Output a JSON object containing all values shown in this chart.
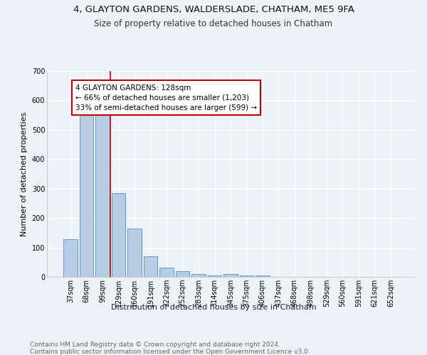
{
  "title1": "4, GLAYTON GARDENS, WALDERSLADE, CHATHAM, ME5 9FA",
  "title2": "Size of property relative to detached houses in Chatham",
  "xlabel": "Distribution of detached houses by size in Chatham",
  "ylabel": "Number of detached properties",
  "bar_labels": [
    "37sqm",
    "68sqm",
    "99sqm",
    "129sqm",
    "160sqm",
    "191sqm",
    "222sqm",
    "252sqm",
    "283sqm",
    "314sqm",
    "345sqm",
    "375sqm",
    "406sqm",
    "437sqm",
    "468sqm",
    "498sqm",
    "529sqm",
    "560sqm",
    "591sqm",
    "621sqm",
    "652sqm"
  ],
  "bar_values": [
    128,
    557,
    557,
    285,
    165,
    70,
    32,
    20,
    10,
    6,
    10,
    5,
    5,
    0,
    0,
    0,
    0,
    0,
    0,
    0,
    0
  ],
  "bar_color": "#b8cce4",
  "bar_edge_color": "#5b9bd5",
  "vline_color": "#c00000",
  "annotation_text": "4 GLAYTON GARDENS: 128sqm\n← 66% of detached houses are smaller (1,203)\n33% of semi-detached houses are larger (599) →",
  "annotation_box_color": "#c00000",
  "ylim": [
    0,
    700
  ],
  "yticks": [
    0,
    100,
    200,
    300,
    400,
    500,
    600,
    700
  ],
  "footnote": "Contains HM Land Registry data © Crown copyright and database right 2024.\nContains public sector information licensed under the Open Government Licence v3.0.",
  "bg_color": "#eef2f8",
  "plot_bg_color": "#eef2f8",
  "grid_color": "#ffffff",
  "title1_fontsize": 9.5,
  "title2_fontsize": 8.5,
  "tick_fontsize": 7,
  "label_fontsize": 8,
  "footnote_fontsize": 6.5
}
